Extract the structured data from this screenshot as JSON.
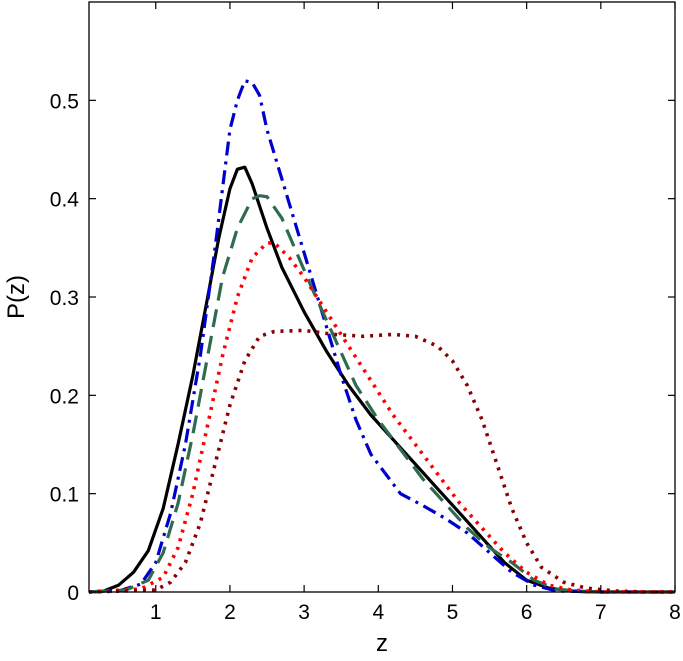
{
  "chart_data": {
    "type": "line",
    "title": "",
    "xlabel": "z",
    "ylabel": "P(z)",
    "xlim": [
      0.1,
      8
    ],
    "ylim": [
      0,
      0.6
    ],
    "xticks": [
      1,
      2,
      3,
      4,
      5,
      6,
      7,
      8
    ],
    "xtick_labels": [
      "1",
      "2",
      "3",
      "4",
      "5",
      "6",
      "7",
      "8"
    ],
    "yticks": [
      0,
      0.1,
      0.2,
      0.3,
      0.4,
      0.5
    ],
    "ytick_labels": [
      "0",
      "0.1",
      "0.2",
      "0.3",
      "0.4",
      "0.5"
    ],
    "grid": false,
    "legend": "none",
    "series": [
      {
        "color": "#000000",
        "style": "solid",
        "points": [
          [
            0.1,
            0
          ],
          [
            0.3,
            0.001
          ],
          [
            0.5,
            0.007
          ],
          [
            0.7,
            0.02
          ],
          [
            0.9,
            0.042
          ],
          [
            1.1,
            0.085
          ],
          [
            1.3,
            0.15
          ],
          [
            1.5,
            0.22
          ],
          [
            1.7,
            0.3
          ],
          [
            1.85,
            0.36
          ],
          [
            2.0,
            0.41
          ],
          [
            2.1,
            0.43
          ],
          [
            2.2,
            0.432
          ],
          [
            2.3,
            0.415
          ],
          [
            2.5,
            0.37
          ],
          [
            2.7,
            0.33
          ],
          [
            3.0,
            0.285
          ],
          [
            3.3,
            0.245
          ],
          [
            3.6,
            0.21
          ],
          [
            3.9,
            0.18
          ],
          [
            4.2,
            0.155
          ],
          [
            4.5,
            0.13
          ],
          [
            4.8,
            0.105
          ],
          [
            5.1,
            0.08
          ],
          [
            5.4,
            0.055
          ],
          [
            5.7,
            0.03
          ],
          [
            6.0,
            0.012
          ],
          [
            6.3,
            0.004
          ],
          [
            6.6,
            0.001
          ],
          [
            7.0,
            0
          ],
          [
            8.0,
            0
          ]
        ]
      },
      {
        "color": "#0000cc",
        "style": "dashdot",
        "points": [
          [
            0.1,
            0
          ],
          [
            0.5,
            0.001
          ],
          [
            0.8,
            0.008
          ],
          [
            1.0,
            0.03
          ],
          [
            1.2,
            0.08
          ],
          [
            1.4,
            0.15
          ],
          [
            1.6,
            0.24
          ],
          [
            1.8,
            0.35
          ],
          [
            2.0,
            0.47
          ],
          [
            2.1,
            0.5
          ],
          [
            2.2,
            0.52
          ],
          [
            2.3,
            0.518
          ],
          [
            2.4,
            0.505
          ],
          [
            2.5,
            0.47
          ],
          [
            2.7,
            0.42
          ],
          [
            2.9,
            0.37
          ],
          [
            3.1,
            0.32
          ],
          [
            3.3,
            0.27
          ],
          [
            3.5,
            0.22
          ],
          [
            3.7,
            0.175
          ],
          [
            3.9,
            0.14
          ],
          [
            4.1,
            0.12
          ],
          [
            4.3,
            0.1
          ],
          [
            4.6,
            0.088
          ],
          [
            4.9,
            0.075
          ],
          [
            5.2,
            0.06
          ],
          [
            5.5,
            0.04
          ],
          [
            5.8,
            0.02
          ],
          [
            6.1,
            0.007
          ],
          [
            6.4,
            0.001
          ],
          [
            7.0,
            0
          ],
          [
            8.0,
            0
          ]
        ]
      },
      {
        "color": "#2e6b4f",
        "style": "dashed",
        "points": [
          [
            0.1,
            0
          ],
          [
            0.6,
            0.002
          ],
          [
            0.9,
            0.012
          ],
          [
            1.1,
            0.04
          ],
          [
            1.3,
            0.09
          ],
          [
            1.5,
            0.16
          ],
          [
            1.7,
            0.24
          ],
          [
            1.9,
            0.32
          ],
          [
            2.1,
            0.37
          ],
          [
            2.3,
            0.4
          ],
          [
            2.4,
            0.403
          ],
          [
            2.5,
            0.402
          ],
          [
            2.7,
            0.38
          ],
          [
            2.9,
            0.345
          ],
          [
            3.1,
            0.31
          ],
          [
            3.4,
            0.26
          ],
          [
            3.7,
            0.21
          ],
          [
            4.0,
            0.175
          ],
          [
            4.3,
            0.145
          ],
          [
            4.6,
            0.115
          ],
          [
            4.9,
            0.09
          ],
          [
            5.2,
            0.065
          ],
          [
            5.5,
            0.045
          ],
          [
            5.8,
            0.03
          ],
          [
            6.1,
            0.012
          ],
          [
            6.4,
            0.003
          ],
          [
            6.8,
            0
          ],
          [
            8.0,
            0
          ]
        ]
      },
      {
        "color": "#ff0000",
        "style": "dotted",
        "points": [
          [
            0.1,
            0
          ],
          [
            0.8,
            0.003
          ],
          [
            1.1,
            0.015
          ],
          [
            1.3,
            0.045
          ],
          [
            1.5,
            0.1
          ],
          [
            1.7,
            0.17
          ],
          [
            1.9,
            0.24
          ],
          [
            2.1,
            0.3
          ],
          [
            2.3,
            0.34
          ],
          [
            2.5,
            0.355
          ],
          [
            2.6,
            0.355
          ],
          [
            2.8,
            0.34
          ],
          [
            3.0,
            0.32
          ],
          [
            3.3,
            0.285
          ],
          [
            3.6,
            0.25
          ],
          [
            3.9,
            0.215
          ],
          [
            4.2,
            0.18
          ],
          [
            4.5,
            0.15
          ],
          [
            4.8,
            0.12
          ],
          [
            5.1,
            0.09
          ],
          [
            5.4,
            0.065
          ],
          [
            5.7,
            0.04
          ],
          [
            6.0,
            0.02
          ],
          [
            6.3,
            0.007
          ],
          [
            6.6,
            0.002
          ],
          [
            7.0,
            0
          ],
          [
            8.0,
            0
          ]
        ]
      },
      {
        "color": "#8b0000",
        "style": "dotted",
        "points": [
          [
            0.1,
            0
          ],
          [
            1.0,
            0.002
          ],
          [
            1.2,
            0.01
          ],
          [
            1.4,
            0.03
          ],
          [
            1.6,
            0.07
          ],
          [
            1.8,
            0.13
          ],
          [
            2.0,
            0.19
          ],
          [
            2.2,
            0.235
          ],
          [
            2.4,
            0.26
          ],
          [
            2.6,
            0.265
          ],
          [
            3.0,
            0.266
          ],
          [
            3.4,
            0.262
          ],
          [
            3.8,
            0.26
          ],
          [
            4.2,
            0.262
          ],
          [
            4.5,
            0.26
          ],
          [
            4.8,
            0.25
          ],
          [
            5.0,
            0.235
          ],
          [
            5.2,
            0.21
          ],
          [
            5.4,
            0.175
          ],
          [
            5.6,
            0.13
          ],
          [
            5.8,
            0.085
          ],
          [
            6.0,
            0.05
          ],
          [
            6.2,
            0.025
          ],
          [
            6.5,
            0.01
          ],
          [
            6.8,
            0.004
          ],
          [
            7.2,
            0.001
          ],
          [
            7.6,
            0
          ],
          [
            8.0,
            0
          ]
        ]
      }
    ]
  }
}
